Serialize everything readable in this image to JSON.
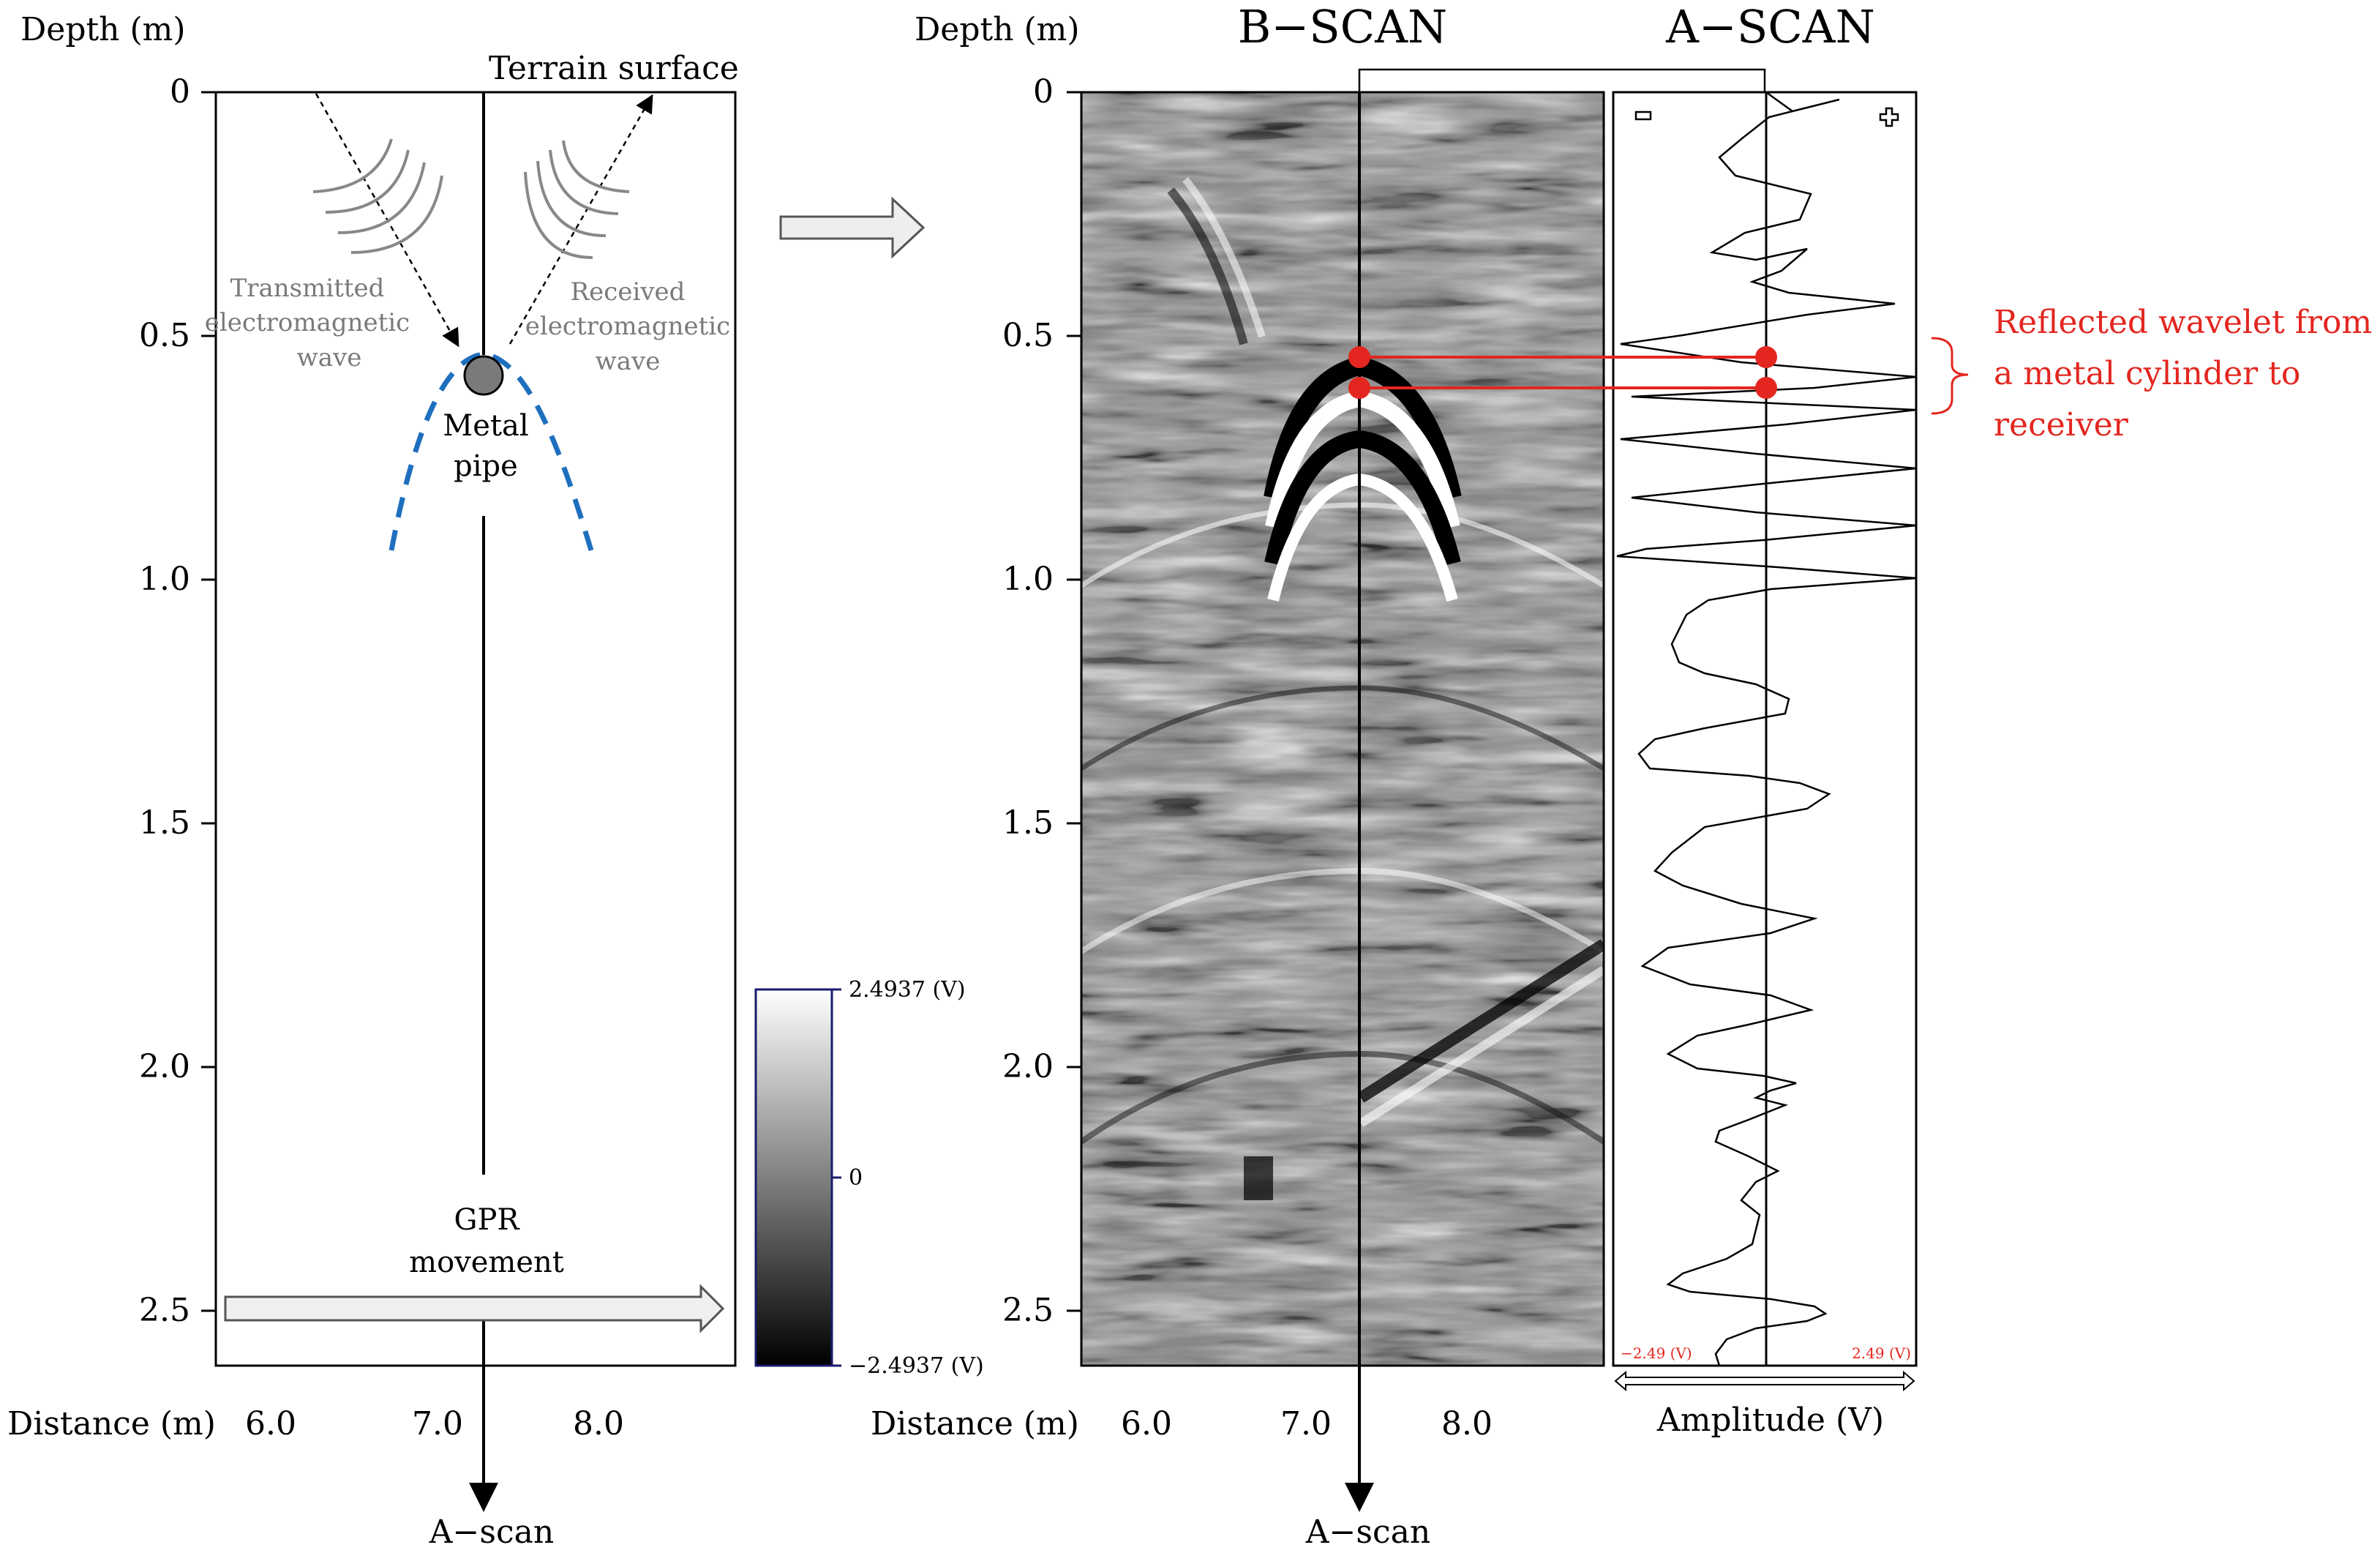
{
  "left_panel": {
    "depth_label": "Depth (m)",
    "distance_label": "Distance (m)",
    "terrain_surface": "Terrain surface",
    "transmitted_label": [
      "Transmitted",
      "electromagnetic",
      "wave"
    ],
    "received_label": [
      "Received",
      "electromagnetic",
      "wave"
    ],
    "pipe_label": [
      "Metal",
      "pipe"
    ],
    "gpr_movement": [
      "GPR",
      "movement"
    ],
    "ascan_arrow_label": "A−scan",
    "depth_ticks": [
      "0",
      "0.5",
      "1.0",
      "1.5",
      "2.0",
      "2.5"
    ],
    "distance_ticks": [
      "6.0",
      "7.0",
      "8.0"
    ]
  },
  "colorbar": {
    "max_label": "2.4937 (V)",
    "mid_label": "0",
    "min_label": "−2.4937 (V)",
    "max_value": 2.4937,
    "min_value": -2.4937
  },
  "right_panel": {
    "bscan_title": "B−SCAN",
    "ascan_title": "A−SCAN",
    "depth_label": "Depth (m)",
    "distance_label": "Distance (m)",
    "amplitude_label": "Amplitude (V)",
    "ascan_arrow_label": "A−scan",
    "minus_sign": "−",
    "plus_sign": "+",
    "amp_min_label": "−2.49 (V)",
    "amp_max_label": "2.49 (V)",
    "depth_ticks": [
      "0",
      "0.5",
      "1.0",
      "1.5",
      "2.0",
      "2.5"
    ],
    "distance_ticks": [
      "6.0",
      "7.0",
      "8.0"
    ],
    "annotation": [
      "Reflected wavelet from",
      "a metal cylinder to",
      "receiver"
    ]
  },
  "colors": {
    "hyperbola": "#1f6fbf",
    "annotation": "#e3261f",
    "label_gray": "#7a7a7a"
  }
}
